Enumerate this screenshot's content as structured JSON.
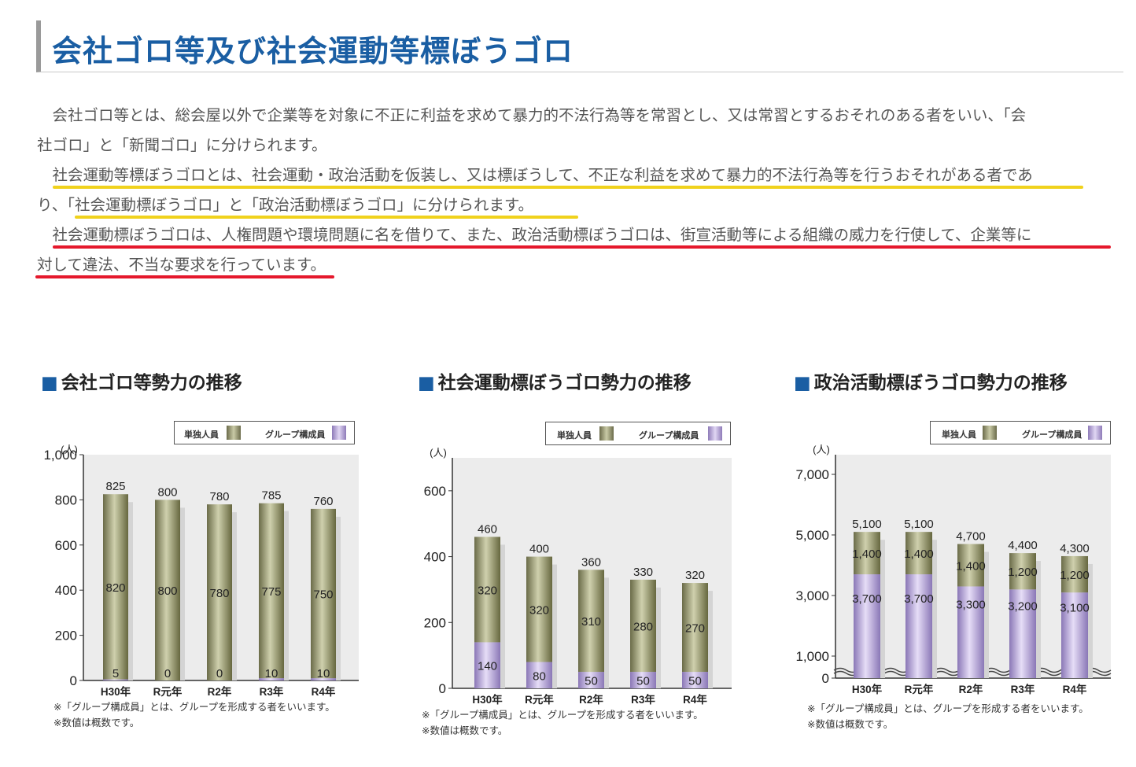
{
  "page": {
    "title": "会社ゴロ等及び社会運動等標ぼうゴロ",
    "paragraphs": [
      "　会社ゴロ等とは、総会屋以外で企業等を対象に不正に利益を求めて暴力的不法行為等を常習とし、又は常習とするおそれのある者をいい、「会",
      "社ゴロ」と「新聞ゴロ」に分けられます。",
      "　社会運動等標ぼうゴロとは、社会運動・政治活動を仮装し、又は標ぼうして、不正な利益を求めて暴力的不法行為等を行うおそれがある者であ",
      "り、「社会運動標ぼうゴロ」と「政治活動標ぼうゴロ」に分けられます。",
      "　社会運動標ぼうゴロは、人権問題や環境問題に名を借りて、また、政治活動標ぼうゴロは、街宣活動等による組織の威力を行使して、企業等に",
      "対して違法、不当な要求を行っています。"
    ],
    "highlight_colors": {
      "yellow": "#f0d21c",
      "red": "#e5182c"
    },
    "title_color": "#1a5ea3"
  },
  "legend": {
    "solo": "単独人員",
    "group": "グループ構成員"
  },
  "notes": [
    "※「グループ構成員」とは、グループを形成する者をいいます。",
    "※数値は概数です。"
  ],
  "chart_data": [
    {
      "type": "bar",
      "title": "会社ゴロ等勢力の推移",
      "unit": "(人)",
      "categories": [
        "H30年",
        "R元年",
        "R2年",
        "R3年",
        "R4年"
      ],
      "series": [
        {
          "name": "単独人員",
          "values": [
            820,
            800,
            780,
            775,
            750
          ]
        },
        {
          "name": "グループ構成員",
          "values": [
            5,
            0,
            0,
            10,
            10
          ]
        }
      ],
      "totals": [
        825,
        800,
        780,
        785,
        760
      ],
      "yticks": [
        "0",
        "200",
        "400",
        "600",
        "800",
        "1,000"
      ],
      "ylim": [
        0,
        1000
      ],
      "colors": {
        "solo": "#8d8e6a",
        "group": "#b8a7d8"
      }
    },
    {
      "type": "bar",
      "title": "社会運動標ぼうゴロ勢力の推移",
      "unit": "(人)",
      "categories": [
        "H30年",
        "R元年",
        "R2年",
        "R3年",
        "R4年"
      ],
      "series": [
        {
          "name": "単独人員",
          "values": [
            320,
            320,
            310,
            280,
            270
          ]
        },
        {
          "name": "グループ構成員",
          "values": [
            140,
            80,
            50,
            50,
            50
          ]
        }
      ],
      "totals": [
        460,
        400,
        360,
        330,
        320
      ],
      "yticks": [
        "0",
        "200",
        "400",
        "600"
      ],
      "ylim": [
        0,
        700
      ],
      "colors": {
        "solo": "#8d8e6a",
        "group": "#b8a7d8"
      }
    },
    {
      "type": "bar",
      "title": "政治活動標ぼうゴロ勢力の推移",
      "unit": "(人)",
      "categories": [
        "H30年",
        "R元年",
        "R2年",
        "R3年",
        "R4年"
      ],
      "series": [
        {
          "name": "単独人員",
          "values": [
            1400,
            1400,
            1400,
            1200,
            1200
          ]
        },
        {
          "name": "グループ構成員",
          "values": [
            3700,
            3700,
            3300,
            3200,
            3100
          ]
        }
      ],
      "totals": [
        5100,
        5100,
        4700,
        4400,
        4300
      ],
      "yticks": [
        "0",
        "1,000",
        "3,000",
        "5,000",
        "7,000"
      ],
      "ylim": [
        0,
        7000
      ],
      "axis_break": true,
      "colors": {
        "solo": "#8d8e6a",
        "group": "#b8a7d8"
      }
    }
  ]
}
